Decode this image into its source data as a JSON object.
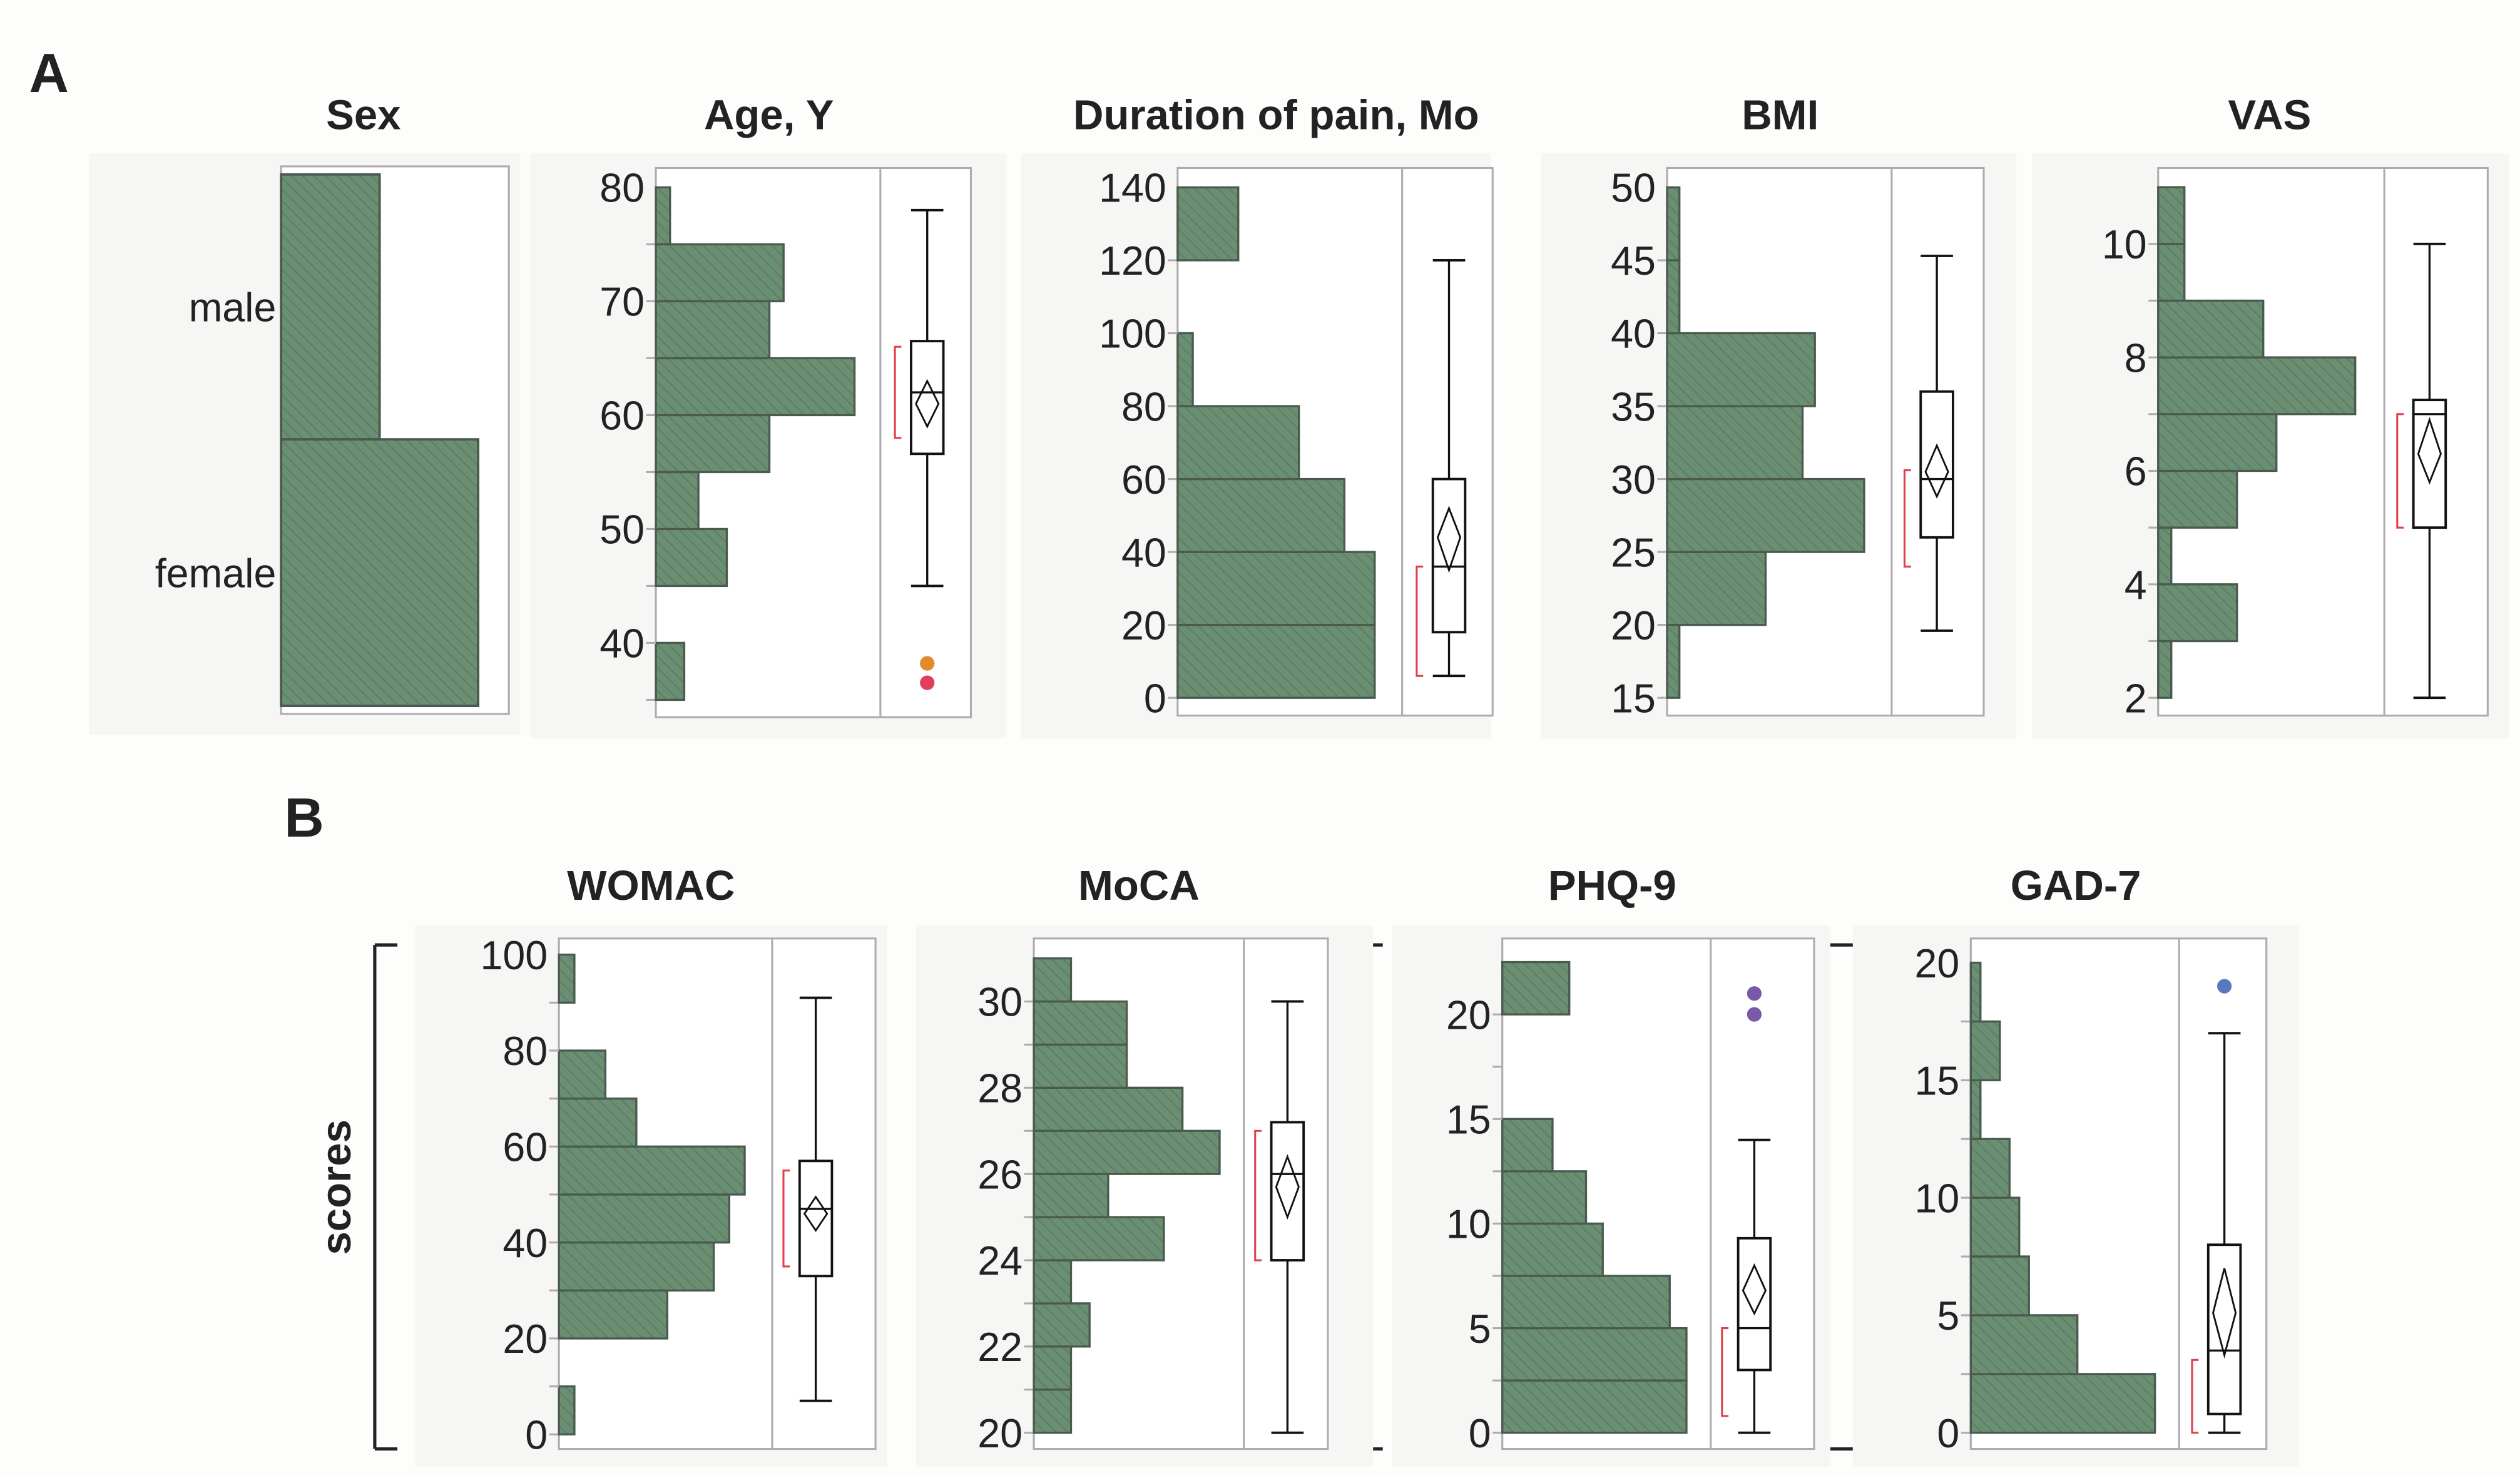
{
  "panels": {
    "a": "A",
    "b": "B"
  },
  "scores_label": "scores",
  "colors": {
    "bar": "#6b8f72",
    "bar_edge": "#4a5a4e",
    "frame": "#b0aab0",
    "bracket": "#e0404a",
    "outlier_age_1": "#e08a2a",
    "outlier_age_2": "#e0405a",
    "outlier_phq": "#7a5aa8",
    "outlier_gad": "#5a78c0"
  },
  "chart_data": [
    {
      "type": "bar",
      "title": "Sex",
      "orientation": "horizontal",
      "categories": [
        "male",
        "female"
      ],
      "values": [
        14,
        28
      ]
    },
    {
      "type": "histogram+box",
      "title": "Age, Y",
      "ticks": [
        40,
        50,
        60,
        70,
        80
      ],
      "ylim": [
        35,
        80
      ],
      "bins": [
        [
          35,
          40,
          2
        ],
        [
          40,
          45,
          0
        ],
        [
          45,
          50,
          5
        ],
        [
          50,
          55,
          3
        ],
        [
          55,
          60,
          8
        ],
        [
          60,
          65,
          14
        ],
        [
          65,
          70,
          8
        ],
        [
          70,
          75,
          9
        ],
        [
          75,
          80,
          1
        ]
      ],
      "box": {
        "min": 45,
        "q1": 56.6,
        "median": 62,
        "q3": 66.5,
        "max": 78,
        "mean": 61,
        "ci": [
          59,
          63
        ],
        "shortest_half": [
          58,
          66
        ],
        "outliers": [
          38.2,
          36.5
        ]
      }
    },
    {
      "type": "histogram+box",
      "title": "Duration of pain, Mo",
      "ticks": [
        0,
        20,
        40,
        60,
        80,
        100,
        120,
        140
      ],
      "ylim": [
        0,
        140
      ],
      "bins": [
        [
          0,
          20,
          13
        ],
        [
          20,
          40,
          13
        ],
        [
          40,
          60,
          11
        ],
        [
          60,
          80,
          8
        ],
        [
          80,
          100,
          1
        ],
        [
          100,
          120,
          0
        ],
        [
          120,
          140,
          4
        ]
      ],
      "box": {
        "min": 6,
        "q1": 18,
        "median": 36,
        "q3": 60,
        "max": 120,
        "mean": 44,
        "ci": [
          35,
          52
        ],
        "shortest_half": [
          6,
          36
        ],
        "outliers": []
      }
    },
    {
      "type": "histogram+box",
      "title": "BMI",
      "ticks": [
        15,
        20,
        25,
        30,
        35,
        40,
        45,
        50
      ],
      "ylim": [
        15,
        50
      ],
      "bins": [
        [
          15,
          20,
          1
        ],
        [
          20,
          25,
          8
        ],
        [
          25,
          30,
          16
        ],
        [
          30,
          35,
          11
        ],
        [
          35,
          40,
          12
        ],
        [
          40,
          45,
          1
        ],
        [
          45,
          50,
          1
        ]
      ],
      "box": {
        "min": 19.6,
        "q1": 26,
        "median": 30,
        "q3": 36,
        "max": 45.3,
        "mean": 30.5,
        "ci": [
          28.8,
          32.3
        ],
        "shortest_half": [
          24,
          30.6
        ],
        "outliers": []
      }
    },
    {
      "type": "histogram+box",
      "title": "VAS",
      "ticks": [
        2,
        4,
        6,
        8,
        10
      ],
      "ylim": [
        2,
        11
      ],
      "bins": [
        [
          2,
          3,
          1
        ],
        [
          3,
          4,
          6
        ],
        [
          4,
          5,
          1
        ],
        [
          5,
          6,
          6
        ],
        [
          6,
          7,
          9
        ],
        [
          7,
          8,
          15
        ],
        [
          8,
          9,
          8
        ],
        [
          9,
          10,
          2
        ],
        [
          10,
          11,
          2
        ]
      ],
      "box": {
        "min": 2,
        "q1": 5,
        "median": 7,
        "q3": 7.25,
        "max": 10,
        "mean": 6.3,
        "ci": [
          5.8,
          6.9
        ],
        "shortest_half": [
          5,
          7
        ],
        "outliers": []
      }
    },
    {
      "type": "histogram+box",
      "title": "WOMAC",
      "ticks": [
        0,
        20,
        40,
        60,
        80,
        100
      ],
      "ylim": [
        0,
        100
      ],
      "bins": [
        [
          0,
          10,
          1
        ],
        [
          10,
          20,
          0
        ],
        [
          20,
          30,
          7
        ],
        [
          30,
          40,
          10
        ],
        [
          40,
          50,
          11
        ],
        [
          50,
          60,
          12
        ],
        [
          60,
          70,
          5
        ],
        [
          70,
          80,
          3
        ],
        [
          80,
          90,
          0
        ],
        [
          90,
          100,
          1
        ]
      ],
      "box": {
        "min": 7,
        "q1": 33,
        "median": 47,
        "q3": 57,
        "max": 91,
        "mean": 46,
        "ci": [
          42.5,
          49.5
        ],
        "shortest_half": [
          35,
          55
        ],
        "outliers": []
      }
    },
    {
      "type": "histogram+box",
      "title": "MoCA",
      "ticks": [
        20,
        22,
        24,
        26,
        28,
        30
      ],
      "ylim": [
        20,
        31
      ],
      "bins": [
        [
          20,
          21,
          2
        ],
        [
          21,
          22,
          2
        ],
        [
          22,
          23,
          3
        ],
        [
          23,
          24,
          2
        ],
        [
          24,
          25,
          7
        ],
        [
          25,
          26,
          4
        ],
        [
          26,
          27,
          10
        ],
        [
          27,
          28,
          8
        ],
        [
          28,
          29,
          5
        ],
        [
          29,
          30,
          5
        ],
        [
          30,
          31,
          2
        ]
      ],
      "box": {
        "min": 20,
        "q1": 24,
        "median": 26,
        "q3": 27.2,
        "max": 30,
        "mean": 25.7,
        "ci": [
          25,
          26.4
        ],
        "shortest_half": [
          24,
          27
        ],
        "outliers": []
      }
    },
    {
      "type": "histogram+box",
      "title": "PHQ-9",
      "ticks": [
        0,
        5,
        10,
        15,
        20
      ],
      "ylim": [
        0,
        22.5
      ],
      "bins": [
        [
          0,
          2.5,
          11
        ],
        [
          2.5,
          5,
          11
        ],
        [
          5,
          7.5,
          10
        ],
        [
          7.5,
          10,
          6
        ],
        [
          10,
          12.5,
          5
        ],
        [
          12.5,
          15,
          3
        ],
        [
          15,
          17.5,
          0
        ],
        [
          17.5,
          20,
          0
        ],
        [
          20,
          22.5,
          4
        ]
      ],
      "box": {
        "min": 0,
        "q1": 3,
        "median": 5,
        "q3": 9.3,
        "max": 14,
        "mean": 6.8,
        "ci": [
          5.7,
          8.0
        ],
        "shortest_half": [
          0.8,
          5
        ],
        "outliers": [
          21,
          20
        ]
      }
    },
    {
      "type": "histogram+box",
      "title": "GAD-7",
      "ticks": [
        0,
        5,
        10,
        15,
        20
      ],
      "ylim": [
        0,
        20
      ],
      "bins": [
        [
          0,
          2.5,
          19
        ],
        [
          2.5,
          5,
          11
        ],
        [
          5,
          7.5,
          6
        ],
        [
          7.5,
          10,
          5
        ],
        [
          10,
          12.5,
          4
        ],
        [
          12.5,
          15,
          1
        ],
        [
          15,
          17.5,
          3
        ],
        [
          17.5,
          20,
          1
        ]
      ],
      "box": {
        "min": 0,
        "q1": 0.8,
        "median": 3.5,
        "q3": 8,
        "max": 17,
        "mean": 5.1,
        "ci": [
          3.3,
          7
        ],
        "shortest_half": [
          0,
          3.1
        ],
        "outliers": [
          19
        ]
      }
    }
  ]
}
